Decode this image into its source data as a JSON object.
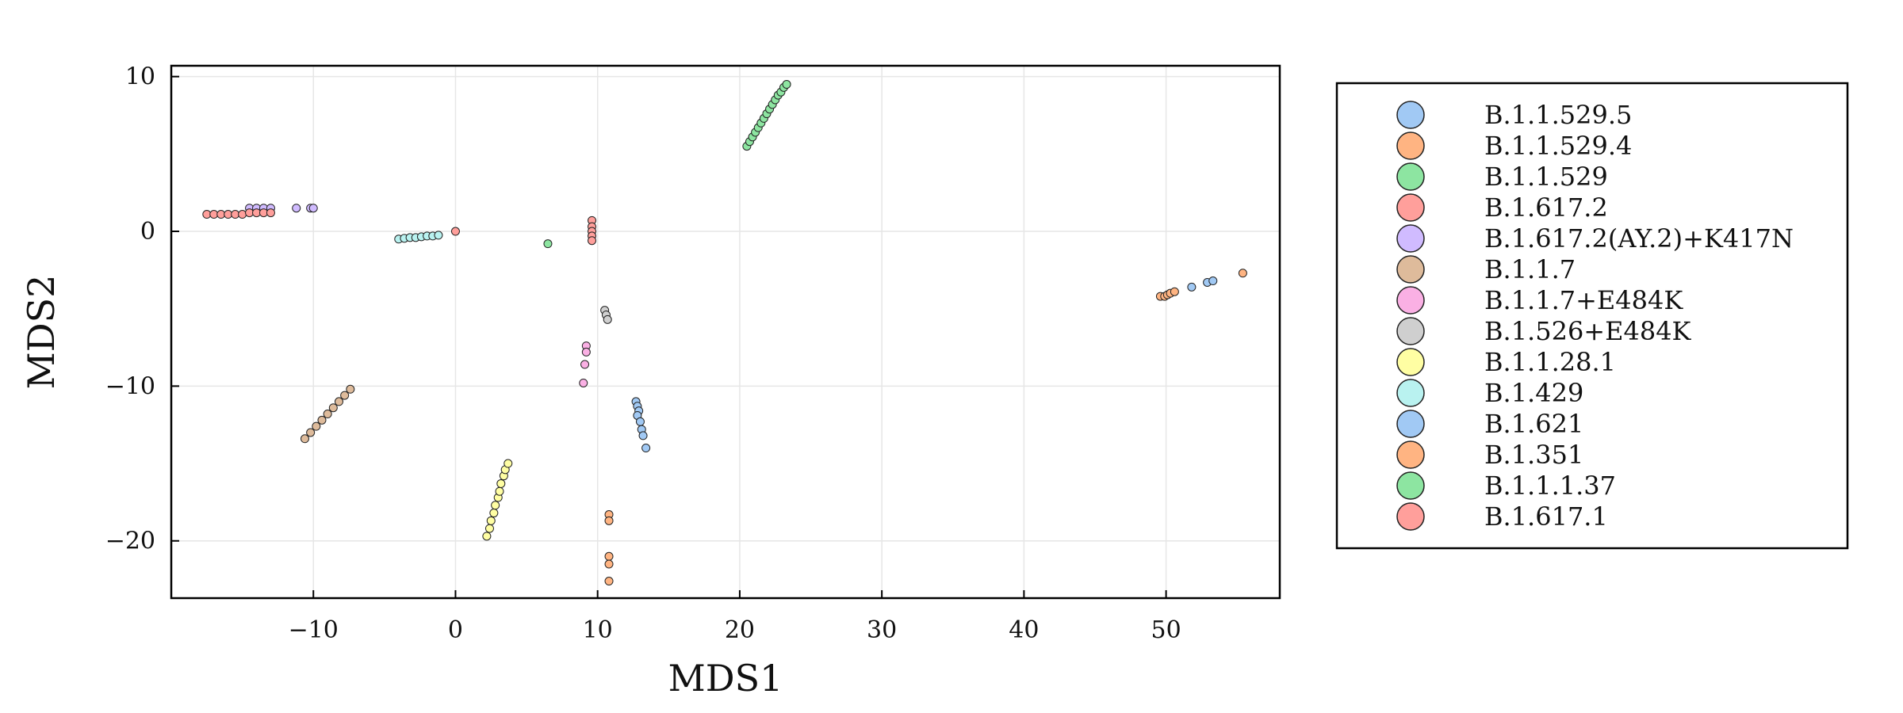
{
  "chart_data": {
    "type": "scatter",
    "title": "",
    "xlabel": "MDS1",
    "ylabel": "MDS2",
    "xlim": [
      -20,
      58
    ],
    "ylim": [
      -23.7,
      10.7
    ],
    "xticks": [
      -10,
      0,
      10,
      20,
      30,
      40,
      50
    ],
    "yticks": [
      -20,
      -10,
      0,
      10
    ],
    "xtick_labels": [
      "−10",
      "0",
      "10",
      "20",
      "30",
      "40",
      "50"
    ],
    "ytick_labels": [
      "−20",
      "−10",
      "0",
      "10"
    ],
    "grid": true,
    "legend_position": "outside-right",
    "series": [
      {
        "name": "B.1.1.529.5",
        "color": "#a1c9f4",
        "points": [
          [
            12.7,
            -11.0
          ],
          [
            12.8,
            -11.3
          ],
          [
            12.9,
            -11.6
          ],
          [
            12.8,
            -11.9
          ],
          [
            13.0,
            -12.3
          ],
          [
            13.1,
            -12.8
          ],
          [
            13.2,
            -13.2
          ],
          [
            13.4,
            -14.0
          ]
        ]
      },
      {
        "name": "B.1.1.529.4",
        "color": "#ffb482",
        "points": [
          [
            49.6,
            -4.2
          ],
          [
            49.9,
            -4.2
          ],
          [
            50.1,
            -4.1
          ],
          [
            50.3,
            -4.0
          ],
          [
            50.6,
            -3.9
          ],
          [
            55.4,
            -2.7
          ]
        ]
      },
      {
        "name": "B.1.1.529",
        "color": "#8de5a1",
        "points": [
          [
            20.5,
            5.5
          ],
          [
            20.7,
            5.8
          ],
          [
            20.9,
            6.1
          ],
          [
            21.1,
            6.4
          ],
          [
            21.3,
            6.7
          ],
          [
            21.5,
            7.0
          ],
          [
            21.7,
            7.3
          ],
          [
            21.9,
            7.6
          ],
          [
            22.1,
            7.9
          ],
          [
            22.3,
            8.2
          ],
          [
            22.5,
            8.5
          ],
          [
            22.7,
            8.8
          ],
          [
            22.9,
            9.0
          ],
          [
            23.1,
            9.3
          ],
          [
            23.3,
            9.5
          ]
        ]
      },
      {
        "name": "B.1.617.2",
        "color": "#ff9f9b",
        "points": [
          [
            9.6,
            0.7
          ],
          [
            9.6,
            0.3
          ],
          [
            9.6,
            0.0
          ],
          [
            9.6,
            -0.3
          ],
          [
            9.6,
            -0.6
          ],
          [
            0.0,
            0.0
          ]
        ]
      },
      {
        "name": "B.1.617.2(AY.2)+K417N",
        "color": "#d0bbff",
        "points": [
          [
            -14.5,
            1.5
          ],
          [
            -14.0,
            1.5
          ],
          [
            -13.5,
            1.5
          ],
          [
            -13.0,
            1.5
          ],
          [
            -11.2,
            1.5
          ],
          [
            -10.2,
            1.5
          ],
          [
            -10.0,
            1.5
          ]
        ]
      },
      {
        "name": "B.1.1.7",
        "color": "#debb9b",
        "points": [
          [
            -10.6,
            -13.4
          ],
          [
            -10.2,
            -13.0
          ],
          [
            -9.8,
            -12.6
          ],
          [
            -9.4,
            -12.2
          ],
          [
            -9.0,
            -11.8
          ],
          [
            -8.6,
            -11.4
          ],
          [
            -8.2,
            -11.0
          ],
          [
            -7.8,
            -10.6
          ],
          [
            -7.4,
            -10.2
          ]
        ]
      },
      {
        "name": "B.1.1.7+E484K",
        "color": "#fab0e4",
        "points": [
          [
            9.2,
            -7.4
          ],
          [
            9.2,
            -7.8
          ],
          [
            9.1,
            -8.6
          ],
          [
            9.0,
            -9.8
          ]
        ]
      },
      {
        "name": "B.1.526+E484K",
        "color": "#cfcfcf",
        "points": [
          [
            10.5,
            -5.1
          ],
          [
            10.6,
            -5.4
          ],
          [
            10.7,
            -5.7
          ]
        ]
      },
      {
        "name": "B.1.1.28.1",
        "color": "#fffea3",
        "points": [
          [
            2.2,
            -19.7
          ],
          [
            2.4,
            -19.2
          ],
          [
            2.5,
            -18.7
          ],
          [
            2.7,
            -18.2
          ],
          [
            2.8,
            -17.7
          ],
          [
            3.0,
            -17.2
          ],
          [
            3.1,
            -16.8
          ],
          [
            3.2,
            -16.3
          ],
          [
            3.4,
            -15.8
          ],
          [
            3.5,
            -15.4
          ],
          [
            3.7,
            -15.0
          ]
        ]
      },
      {
        "name": "B.1.429",
        "color": "#b9f2f0",
        "points": [
          [
            -4.0,
            -0.5
          ],
          [
            -3.6,
            -0.45
          ],
          [
            -3.2,
            -0.4
          ],
          [
            -2.8,
            -0.4
          ],
          [
            -2.4,
            -0.35
          ],
          [
            -2.0,
            -0.3
          ],
          [
            -1.6,
            -0.3
          ],
          [
            -1.2,
            -0.25
          ]
        ]
      },
      {
        "name": "B.1.621",
        "color": "#a1c9f4",
        "points": [
          [
            51.8,
            -3.6
          ],
          [
            52.9,
            -3.3
          ],
          [
            53.3,
            -3.2
          ]
        ]
      },
      {
        "name": "B.1.351",
        "color": "#ffb482",
        "points": [
          [
            10.8,
            -18.3
          ],
          [
            10.8,
            -18.7
          ],
          [
            10.8,
            -21.0
          ],
          [
            10.8,
            -21.5
          ],
          [
            10.8,
            -22.6
          ]
        ]
      },
      {
        "name": "B.1.1.1.37",
        "color": "#8de5a1",
        "points": [
          [
            6.5,
            -0.8
          ]
        ]
      },
      {
        "name": "B.1.617.1",
        "color": "#ff9f9b",
        "points": [
          [
            -17.5,
            1.1
          ],
          [
            -17.0,
            1.1
          ],
          [
            -16.5,
            1.1
          ],
          [
            -16.0,
            1.1
          ],
          [
            -15.5,
            1.1
          ],
          [
            -15.0,
            1.1
          ],
          [
            -14.5,
            1.2
          ],
          [
            -14.0,
            1.2
          ],
          [
            -13.5,
            1.2
          ],
          [
            -13.0,
            1.2
          ]
        ]
      }
    ]
  }
}
